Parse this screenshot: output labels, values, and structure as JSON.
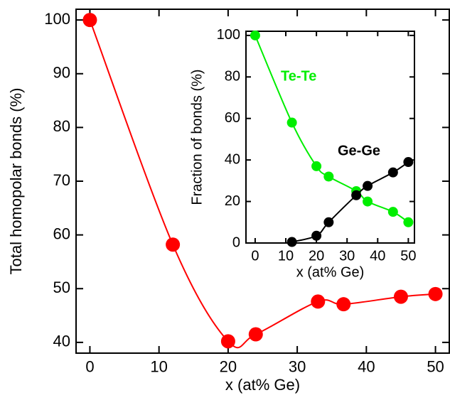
{
  "chart_data": [
    {
      "type": "line",
      "xlabel": "x (at% Ge)",
      "ylabel": "Total homopolar bonds (%)",
      "xlim": [
        -2,
        52
      ],
      "ylim": [
        38,
        102
      ],
      "xticks": [
        0,
        10,
        20,
        30,
        40,
        50
      ],
      "yticks": [
        40,
        50,
        60,
        70,
        80,
        90,
        100
      ],
      "series": [
        {
          "color": "#ff0000",
          "x": [
            0,
            12,
            20,
            24,
            33,
            36.7,
            45,
            50
          ],
          "values": [
            100,
            58.2,
            40.2,
            41.5,
            47.6,
            47.1,
            48.5,
            49.0
          ]
        }
      ]
    },
    {
      "type": "line",
      "xlabel": "x (at% Ge)",
      "ylabel": "Fraction of bonds (%)",
      "xlim": [
        -3,
        52
      ],
      "ylim": [
        0,
        102
      ],
      "xticks": [
        0,
        10,
        20,
        30,
        40,
        50
      ],
      "yticks": [
        0,
        20,
        40,
        60,
        80,
        100
      ],
      "series": [
        {
          "name": "Te-Te",
          "color": "#00ee00",
          "x": [
            0,
            12,
            20,
            24,
            33,
            36.7,
            45,
            50
          ],
          "values": [
            100,
            58,
            37,
            32,
            25,
            20,
            15,
            10
          ]
        },
        {
          "name": "Ge-Ge",
          "color": "#000000",
          "x": [
            12,
            20,
            24,
            33,
            36.7,
            45,
            50
          ],
          "values": [
            0.5,
            3.5,
            10,
            23,
            27.5,
            34,
            39
          ]
        }
      ]
    }
  ]
}
